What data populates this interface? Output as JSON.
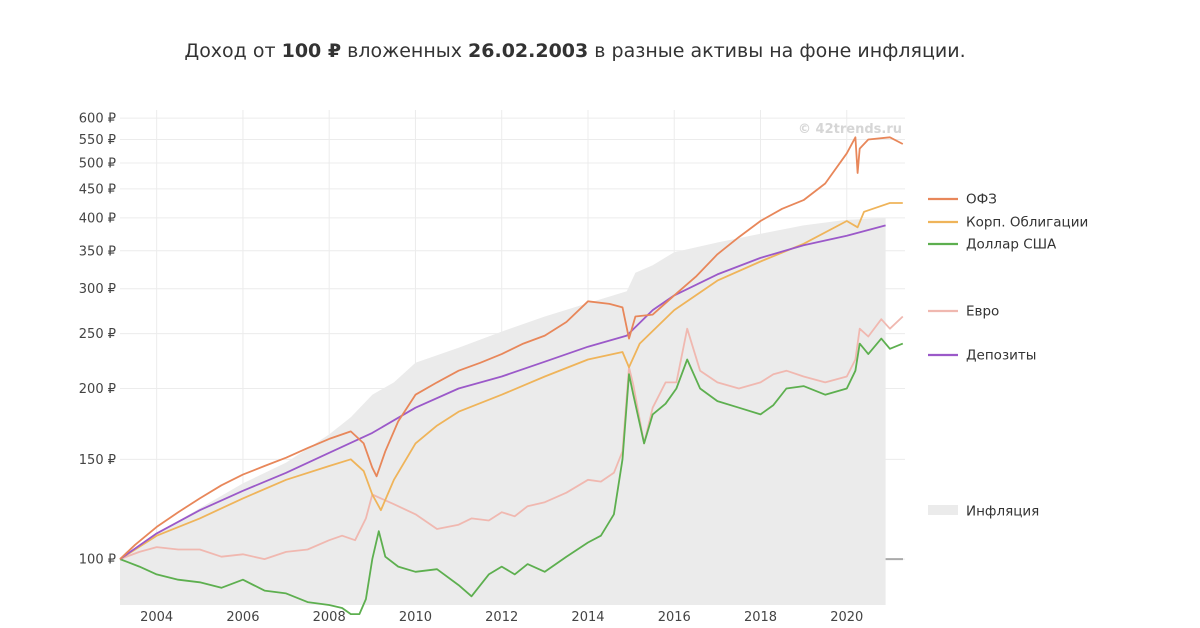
{
  "chart_data": {
    "type": "line",
    "title_parts": [
      "Доход от ",
      "100 ₽",
      " вложенных ",
      "26.02.2003",
      " в разные активы на фоне инфляции."
    ],
    "watermark": "© 42trends.ru",
    "y_scale": "log",
    "ylim": [
      83,
      620
    ],
    "xlim": [
      2003.15,
      2021.35
    ],
    "y_ticks": [
      {
        "v": 100,
        "label": "100 ₽"
      },
      {
        "v": 150,
        "label": "150 ₽"
      },
      {
        "v": 200,
        "label": "200 ₽"
      },
      {
        "v": 250,
        "label": "250 ₽"
      },
      {
        "v": 300,
        "label": "300 ₽"
      },
      {
        "v": 350,
        "label": "350 ₽"
      },
      {
        "v": 400,
        "label": "400 ₽"
      },
      {
        "v": 450,
        "label": "450 ₽"
      },
      {
        "v": 500,
        "label": "500 ₽"
      },
      {
        "v": 550,
        "label": "550 ₽"
      },
      {
        "v": 600,
        "label": "600 ₽"
      }
    ],
    "x_ticks": [
      {
        "v": 2004,
        "label": "2004"
      },
      {
        "v": 2006,
        "label": "2006"
      },
      {
        "v": 2008,
        "label": "2008"
      },
      {
        "v": 2010,
        "label": "2010"
      },
      {
        "v": 2012,
        "label": "2012"
      },
      {
        "v": 2014,
        "label": "2014"
      },
      {
        "v": 2016,
        "label": "2016"
      },
      {
        "v": 2018,
        "label": "2018"
      },
      {
        "v": 2020,
        "label": "2020"
      }
    ],
    "baseline": 100,
    "series": [
      {
        "name": "ОФЗ",
        "color": "#e8875a",
        "x": [
          2003.15,
          2003.5,
          2004,
          2004.5,
          2005,
          2005.5,
          2006,
          2006.5,
          2007,
          2007.5,
          2008,
          2008.5,
          2008.8,
          2009.0,
          2009.1,
          2009.3,
          2009.6,
          2010,
          2010.5,
          2011,
          2011.5,
          2012,
          2012.5,
          2013,
          2013.5,
          2014,
          2014.5,
          2014.8,
          2014.95,
          2015.1,
          2015.5,
          2016,
          2016.5,
          2017,
          2017.5,
          2018,
          2018.5,
          2019,
          2019.5,
          2020,
          2020.2,
          2020.25,
          2020.3,
          2020.5,
          2021,
          2021.3
        ],
        "y": [
          100,
          106,
          114,
          121,
          128,
          135,
          141,
          146,
          151,
          157,
          163,
          168,
          160,
          145,
          140,
          155,
          175,
          195,
          205,
          215,
          222,
          230,
          240,
          248,
          262,
          285,
          282,
          278,
          245,
          268,
          270,
          292,
          315,
          345,
          370,
          395,
          415,
          430,
          460,
          520,
          555,
          480,
          530,
          550,
          555,
          540
        ]
      },
      {
        "name": "Корп. Облигации",
        "color": "#efb45a",
        "x": [
          2003.15,
          2004,
          2005,
          2006,
          2007,
          2008,
          2008.5,
          2008.8,
          2009.0,
          2009.2,
          2009.5,
          2010,
          2010.5,
          2011,
          2012,
          2013,
          2014,
          2014.8,
          2014.95,
          2015.2,
          2016,
          2017,
          2018,
          2019,
          2020,
          2020.25,
          2020.4,
          2021,
          2021.3
        ],
        "y": [
          100,
          110,
          118,
          128,
          138,
          146,
          150,
          143,
          130,
          122,
          138,
          160,
          172,
          182,
          195,
          210,
          225,
          232,
          218,
          240,
          275,
          310,
          335,
          360,
          395,
          385,
          410,
          425,
          425
        ]
      },
      {
        "name": "Доллар США",
        "color": "#5daf4f",
        "x": [
          2003.15,
          2003.6,
          2004,
          2004.5,
          2005,
          2005.5,
          2006,
          2006.5,
          2007,
          2007.5,
          2008,
          2008.3,
          2008.5,
          2008.7,
          2008.85,
          2009.0,
          2009.15,
          2009.3,
          2009.6,
          2010,
          2010.5,
          2011,
          2011.3,
          2011.7,
          2012,
          2012.3,
          2012.6,
          2013,
          2013.5,
          2014,
          2014.3,
          2014.6,
          2014.8,
          2014.95,
          2015.05,
          2015.3,
          2015.5,
          2015.8,
          2016.05,
          2016.3,
          2016.6,
          2017,
          2017.5,
          2018,
          2018.3,
          2018.6,
          2019,
          2019.5,
          2020,
          2020.2,
          2020.3,
          2020.5,
          2020.8,
          2021.0,
          2021.3
        ],
        "y": [
          100,
          97,
          94,
          92,
          91,
          89,
          92,
          88,
          87,
          84,
          83,
          82,
          80,
          80,
          85,
          100,
          112,
          101,
          97,
          95,
          96,
          90,
          86,
          94,
          97,
          94,
          98,
          95,
          101,
          107,
          110,
          120,
          150,
          212,
          195,
          160,
          180,
          188,
          200,
          225,
          200,
          190,
          185,
          180,
          187,
          200,
          202,
          195,
          200,
          215,
          240,
          230,
          245,
          235,
          240
        ]
      },
      {
        "name": "Евро",
        "color": "#f0b8b0",
        "x": [
          2003.15,
          2003.6,
          2004,
          2004.5,
          2005,
          2005.5,
          2006,
          2006.5,
          2007,
          2007.5,
          2008,
          2008.3,
          2008.6,
          2008.85,
          2009.0,
          2009.2,
          2009.5,
          2010,
          2010.5,
          2011,
          2011.3,
          2011.7,
          2012,
          2012.3,
          2012.6,
          2013,
          2013.5,
          2014,
          2014.3,
          2014.6,
          2014.8,
          2014.95,
          2015.05,
          2015.3,
          2015.5,
          2015.8,
          2016.05,
          2016.3,
          2016.6,
          2017,
          2017.5,
          2018,
          2018.3,
          2018.6,
          2019,
          2019.5,
          2020,
          2020.2,
          2020.3,
          2020.5,
          2020.8,
          2021.0,
          2021.3
        ],
        "y": [
          100,
          103,
          105,
          104,
          104,
          101,
          102,
          100,
          103,
          104,
          108,
          110,
          108,
          118,
          130,
          128,
          125,
          120,
          113,
          115,
          118,
          117,
          121,
          119,
          124,
          126,
          131,
          138,
          137,
          142,
          155,
          218,
          203,
          160,
          185,
          205,
          205,
          255,
          215,
          205,
          200,
          205,
          212,
          215,
          210,
          205,
          210,
          225,
          255,
          247,
          265,
          255,
          268
        ]
      },
      {
        "name": "Депозиты",
        "color": "#9b59c9",
        "x": [
          2003.15,
          2004,
          2005,
          2006,
          2007,
          2008,
          2009,
          2010,
          2011,
          2012,
          2013,
          2014,
          2014.9,
          2015.5,
          2016,
          2017,
          2018,
          2019,
          2020,
          2020.9
        ],
        "y": [
          100,
          111,
          122,
          132,
          142,
          154,
          167,
          185,
          200,
          210,
          223,
          237,
          248,
          275,
          292,
          318,
          340,
          358,
          372,
          388
        ]
      }
    ],
    "inflation": {
      "name": "Инфляция",
      "color": "#ebebeb",
      "x": [
        2003.15,
        2004,
        2005,
        2006,
        2007,
        2008,
        2008.5,
        2009,
        2009.5,
        2010,
        2011,
        2012,
        2013,
        2014,
        2014.9,
        2015.1,
        2015.5,
        2016,
        2017,
        2018,
        2019,
        2020,
        2020.9
      ],
      "y": [
        100,
        111,
        123,
        136,
        148,
        166,
        178,
        195,
        205,
        222,
        236,
        252,
        268,
        283,
        297,
        320,
        330,
        348,
        362,
        375,
        388,
        397,
        400
      ]
    },
    "legend": [
      "ОФЗ",
      "Корп. Облигации",
      "Доллар США",
      "Евро",
      "Депозиты",
      "Инфляция"
    ]
  }
}
